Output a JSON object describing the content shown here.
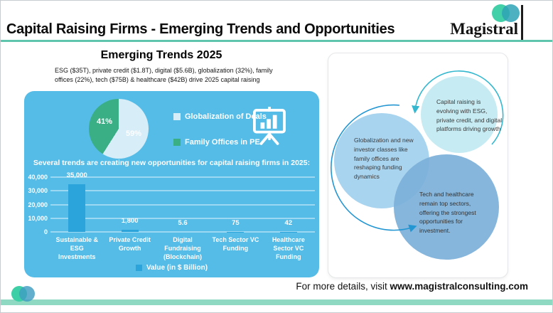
{
  "header": {
    "title": "Capital Raising Firms - Emerging Trends and Opportunities",
    "logo_text": "Magistral"
  },
  "intro": {
    "subtitle": "Emerging Trends 2025",
    "description": "ESG ($35T), private credit ($1.8T), digital ($5.6B), globalization (32%), family offices (22%), tech ($75B) & healthcare ($42B) drive 2025 capital raising"
  },
  "chart_data": [
    {
      "type": "pie",
      "labels": [
        "Globalization of Deals",
        "Family Offices in PE"
      ],
      "values": [
        59,
        41
      ],
      "value_labels": [
        "59%",
        "41%"
      ],
      "colors": [
        "#d7edf7",
        "#3aae85"
      ],
      "legend_position": "right"
    },
    {
      "type": "bar",
      "title": "Several trends are creating new opportunities for capital raising firms in 2025:",
      "categories": [
        "Sustainable & ESG Investments",
        "Private Credit Growth",
        "Digital Fundraising (Blockchain)",
        "Tech Sector VC Funding",
        "Healthcare Sector VC Funding"
      ],
      "values": [
        35000,
        1800,
        5.6,
        75,
        42
      ],
      "value_labels": [
        "35,000",
        "1,800",
        "5.6",
        "75",
        "42"
      ],
      "ylim": [
        0,
        40000
      ],
      "yticks": [
        "40,000",
        "30,000",
        "20,000",
        "10,000",
        "0"
      ],
      "grid": true,
      "legend": "Value (in $ Billion)",
      "legend_position": "bottom",
      "bar_color": "#2aa4da"
    }
  ],
  "insights": {
    "circles": [
      {
        "text": "Capital raising is evolving with ESG, private credit, and digital platforms driving growth"
      },
      {
        "text": "Globalization and new investor classes like family offices are reshaping funding dynamics"
      },
      {
        "text": "Tech and healthcare remain top sectors, offering the strongest opportunities for investment."
      }
    ]
  },
  "footer": {
    "prefix": "For more details, visit",
    "url": "www.magistralconsulting.com"
  },
  "colors": {
    "panel_blue": "#55bce8",
    "bar_blue": "#2aa4da",
    "pie_green": "#3aae85",
    "pie_light": "#d7edf7",
    "title_rule_teal": "#5fc5ac",
    "bottom_bar_teal": "#8fd8c1",
    "logo_green": "#42d0a9",
    "logo_teal": "#2ea3b6",
    "insight_circle_1": "#c6ebf2",
    "insight_circle_2": "#a9d4ef",
    "insight_circle_3": "#7cb0d9"
  }
}
